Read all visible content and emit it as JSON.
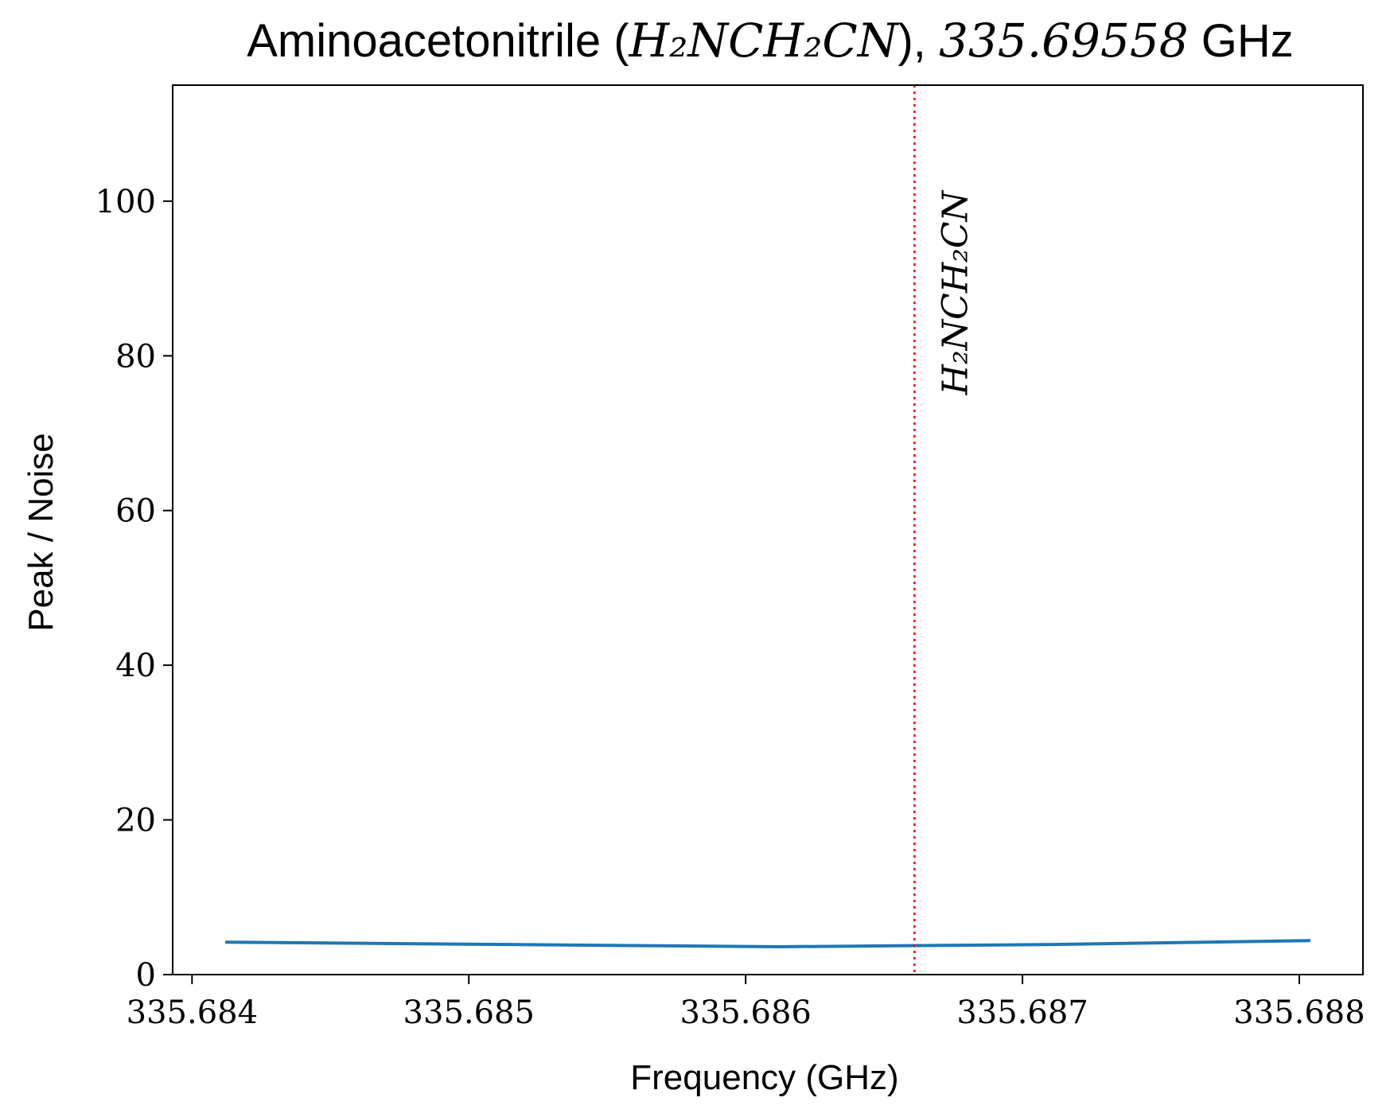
{
  "chart_data": {
    "type": "line",
    "title": {
      "prefix": "Aminoacetonitrile (",
      "formula": "H₂NCH₂CN",
      "mid": "), ",
      "frequency": "335.69558",
      "suffix": " GHz"
    },
    "xlabel": "Frequency (GHz)",
    "ylabel": "Peak / Noise",
    "xlim": [
      335.68393,
      335.68823
    ],
    "ylim": [
      0,
      115
    ],
    "x_ticks": [
      335.684,
      335.685,
      335.686,
      335.687,
      335.688
    ],
    "x_tick_labels": [
      "335.684",
      "335.685",
      "335.686",
      "335.687",
      "335.688"
    ],
    "y_ticks": [
      0,
      20,
      40,
      60,
      80,
      100
    ],
    "y_tick_labels": [
      "0",
      "20",
      "40",
      "60",
      "80",
      "100"
    ],
    "grid": false,
    "series": [
      {
        "color": "#1f77b4",
        "x": [
          335.68412,
          335.68512,
          335.68612,
          335.68712,
          335.68804
        ],
        "y": [
          4.2,
          3.9,
          3.6,
          3.9,
          4.4
        ]
      }
    ],
    "vlines": [
      {
        "x": 335.68661,
        "color": "#ff0000",
        "style": "dotted",
        "label": "H₂NCH₂CN"
      }
    ]
  }
}
